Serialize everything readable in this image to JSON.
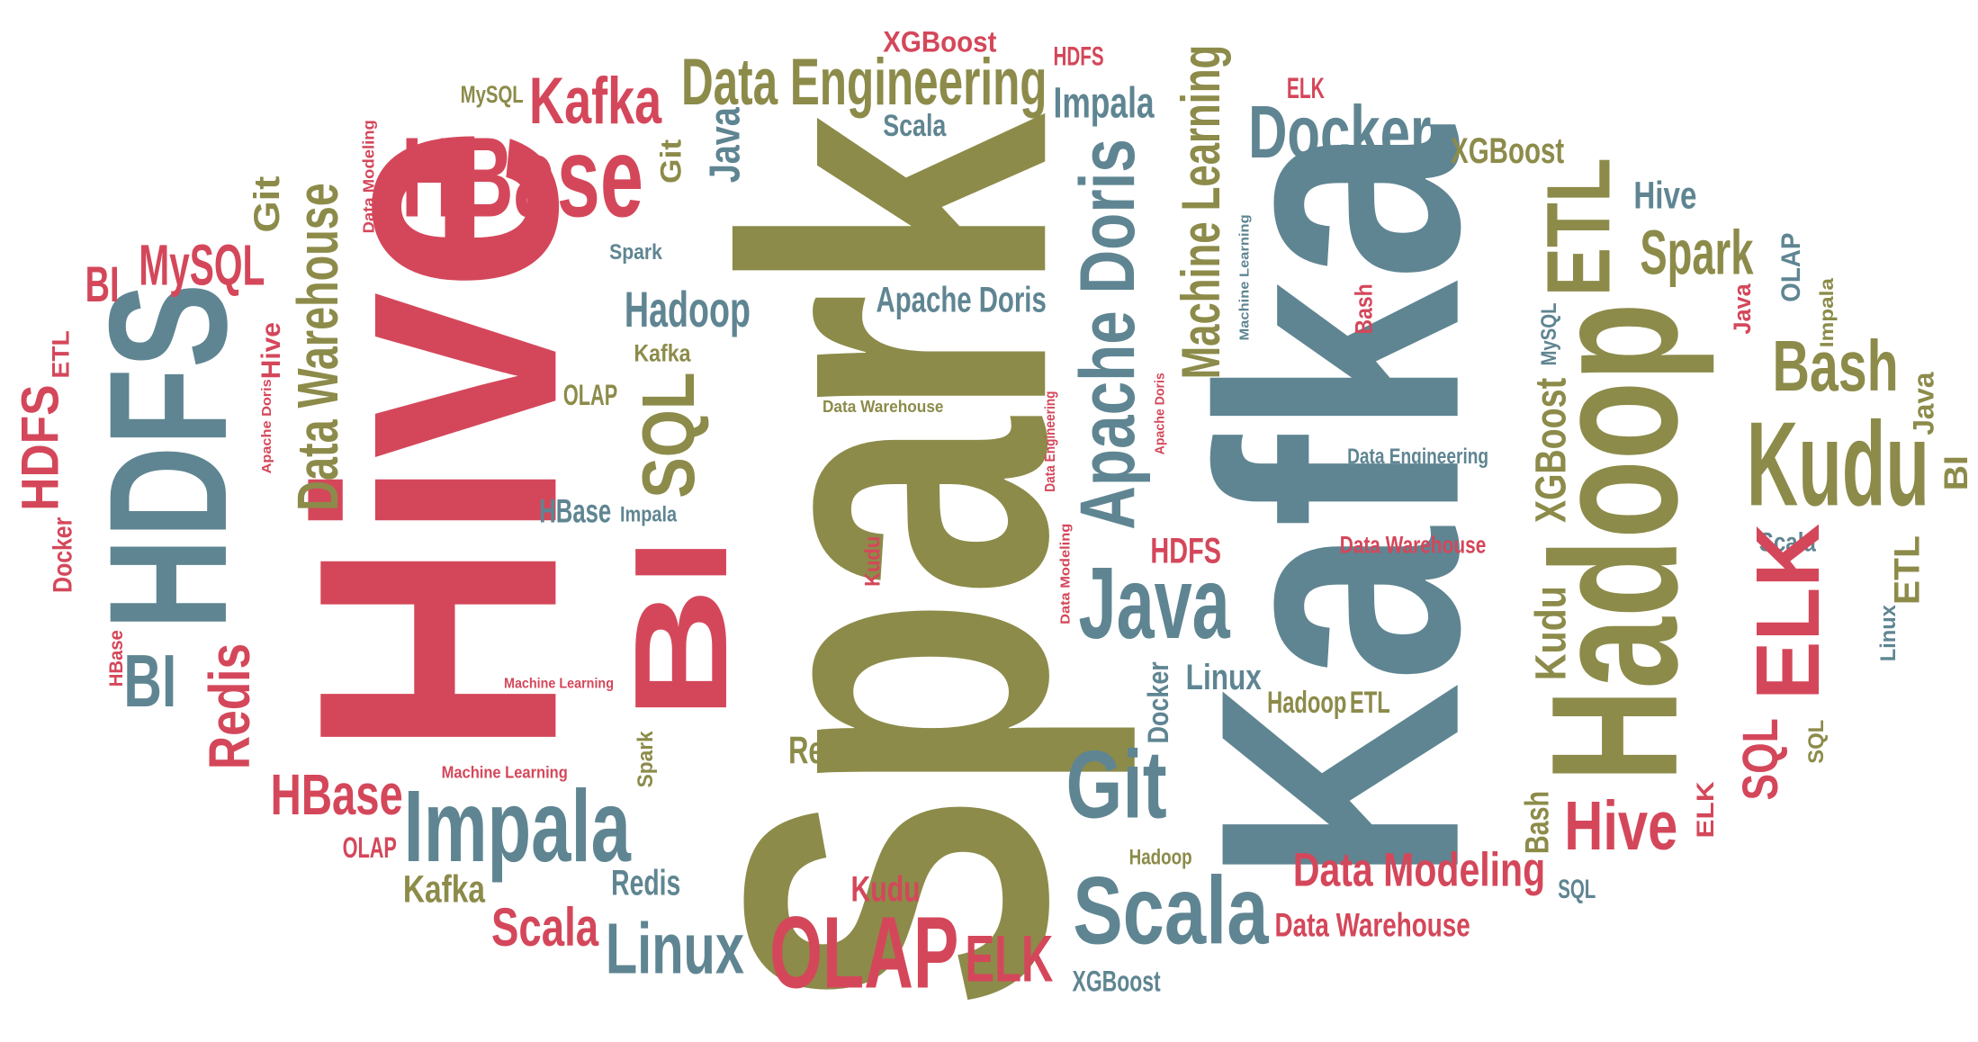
{
  "words": [
    "Spark",
    "Kafka",
    "Hive",
    "HDFS",
    "Hadoop",
    "HBase",
    "Kafka",
    "Data Engineering",
    "XGBoost",
    "HDFS",
    "MySQL",
    "Impala",
    "Scala",
    "Machine Learning",
    "ELK",
    "Docker",
    "XGBoost",
    "ETL",
    "Hive",
    "Spark",
    "OLAP",
    "Impala",
    "Java",
    "Bash",
    "Kudu",
    "Java",
    "BI",
    "Scala",
    "ETL",
    "ELK",
    "Linux",
    "SQL",
    "SQL",
    "Hive",
    "ELK",
    "Bash",
    "Data Modeling",
    "SQL",
    "Data Warehouse",
    "XGBoost",
    "Hadoop",
    "Scala",
    "ELK",
    "OLAP",
    "Kudu",
    "Linux",
    "Redis",
    "Scala",
    "Kafka",
    "OLAP",
    "Impala",
    "HBase",
    "Machine Learning",
    "Spark",
    "Redis",
    "Git",
    "Docker",
    "Linux",
    "Hadoop",
    "ETL",
    "Java",
    "HDFS",
    "Data Warehouse",
    "Data Engineering",
    "Kudu",
    "XGBoost",
    "MySQL",
    "Bash",
    "Machine Learning",
    "Apache Doris",
    "Apache Doris",
    "Git",
    "Java",
    "Spark",
    "Hadoop",
    "Kafka",
    "SQL",
    "OLAP",
    "Data Warehouse",
    "Data Engineering",
    "Apache Doris",
    "Data Modeling",
    "BI",
    "HBase",
    "Impala",
    "Kudu",
    "Machine Learning",
    "Data Warehouse",
    "Git",
    "Data Modeling",
    "MySQL",
    "BI",
    "ETL",
    "HDFS",
    "Hive",
    "Apache Doris",
    "Docker",
    "BI",
    "HBase",
    "Redis"
  ]
}
